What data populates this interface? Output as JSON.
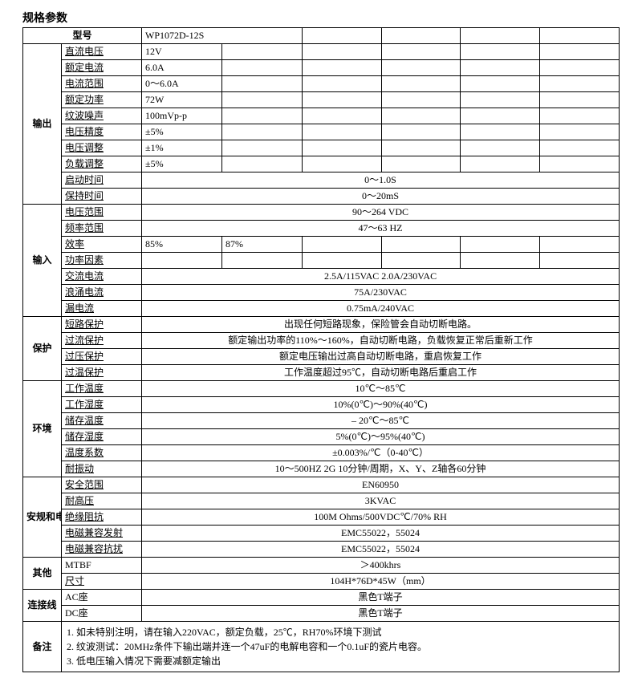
{
  "title": "规格参数",
  "header": {
    "model_label": "型号",
    "model_value": "WP1072D-12S"
  },
  "sections": {
    "output": {
      "label": "输出",
      "rows": {
        "dc_voltage": {
          "label": "直流电压",
          "v": "12V"
        },
        "rated_current": {
          "label": "额定电流",
          "v": "6.0A"
        },
        "current_range": {
          "label": "电流范围",
          "v": "0～6.0A"
        },
        "rated_power": {
          "label": "额定功率",
          "v": "72W"
        },
        "ripple": {
          "label": "纹波噪声",
          "v": "100mVp-p"
        },
        "v_accuracy": {
          "label": "电压精度",
          "v": "±5%"
        },
        "v_regulation": {
          "label": "电压调整",
          "v": "±1%"
        },
        "load_reg": {
          "label": "负载调整",
          "v": "±5%"
        },
        "start_time": {
          "label": "启动时间",
          "v": "0～1.0S"
        },
        "hold_time": {
          "label": "保持时间",
          "v": "0～20mS"
        }
      }
    },
    "input": {
      "label": "输入",
      "rows": {
        "v_range": {
          "label": "电压范围",
          "v": "90～264 VDC"
        },
        "f_range": {
          "label": "频率范围",
          "v": "47～63 HZ"
        },
        "eff": {
          "label": "效率",
          "v1": "85%",
          "v2": "87%"
        },
        "pf": {
          "label": "功率因素",
          "v": ""
        },
        "ac_current": {
          "label": "交流电流",
          "v": "2.5A/115VAC  2.0A/230VAC"
        },
        "inrush": {
          "label": "浪涌电流",
          "v": "75A/230VAC"
        },
        "leakage": {
          "label": "漏电流",
          "v": "0.75mA/240VAC"
        }
      }
    },
    "protection": {
      "label": "保护",
      "rows": {
        "short": {
          "label": "短路保护",
          "v": "出现任何短路现象，保险管会自动切断电路。"
        },
        "oc": {
          "label": "过流保护",
          "v": "额定输出功率的110%～160%，自动切断电路，负载恢复正常后重新工作"
        },
        "ov": {
          "label": "过压保护",
          "v": "额定电压输出过高自动切断电路，重启恢复工作"
        },
        "ot": {
          "label": "过温保护",
          "v": "工作温度超过95℃，自动切断电路后重启工作"
        }
      }
    },
    "environment": {
      "label": "环境",
      "rows": {
        "work_temp": {
          "label": "工作温度",
          "v": "10℃～85℃"
        },
        "work_hum": {
          "label": "工作湿度",
          "v": "10%(0℃)～90%(40℃)"
        },
        "stor_temp": {
          "label": "储存温度",
          "v": "– 20℃～85℃"
        },
        "stor_hum": {
          "label": "储存湿度",
          "v": "5%(0℃)～95%(40℃)"
        },
        "temp_coef": {
          "label": "温度系数",
          "v": "±0.003%/℃（0-40℃）"
        },
        "vibration": {
          "label": "耐振动",
          "v": "10～500HZ 2G 10分钟/周期，X、Y、Z轴各60分钟"
        }
      }
    },
    "safety_emc": {
      "label": "安规和电磁兼容",
      "rows": {
        "safety": {
          "label": "安全范围",
          "v": "EN60950"
        },
        "hipot": {
          "label": "耐高压",
          "v": "3KVAC"
        },
        "insulation": {
          "label": "绝缘阻抗",
          "v": "100M Ohms/500VDC℃/70% RH"
        },
        "emi": {
          "label": "电磁兼容发射",
          "v": "EMC55022，55024"
        },
        "ems": {
          "label": "电磁兼容抗扰",
          "v": "EMC55022，55024"
        }
      }
    },
    "other": {
      "label": "其他",
      "rows": {
        "mtbf": {
          "label": "MTBF",
          "v": "＞400khrs"
        },
        "dim": {
          "label": "尺寸",
          "v": "104H*76D*45W（mm）"
        }
      }
    },
    "connector": {
      "label": "连接线",
      "rows": {
        "ac": {
          "label": "AC座",
          "v": "黑色T端子"
        },
        "dc": {
          "label": "DC座",
          "v": "黑色T端子"
        }
      }
    },
    "notes": {
      "label": "备注",
      "lines": [
        "1. 如未特别注明，请在输入220VAC，额定负载，25℃，RH70%环境下测试",
        "2. 纹波测试：20MHz条件下输出端并连一个47uF的电解电容和一个0.1uF的瓷片电容。",
        "3. 低电压输入情况下需要减额定输出"
      ]
    }
  }
}
